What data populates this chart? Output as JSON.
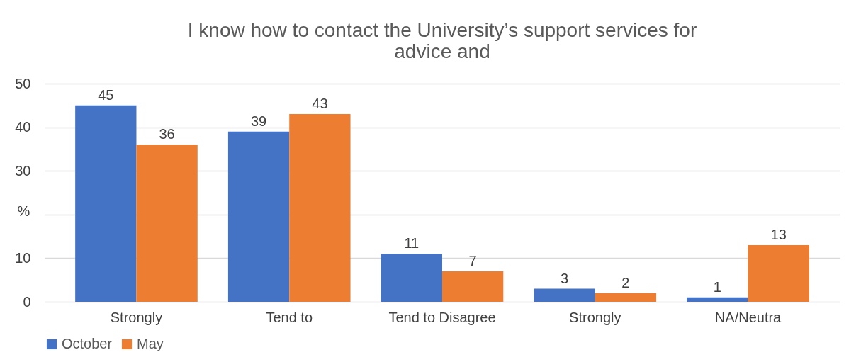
{
  "chart_data": {
    "type": "bar",
    "title": "I know how to contact the University’s support services for\nadvice and",
    "categories": [
      "Strongly",
      "Tend to",
      "Tend to Disagree",
      "Strongly",
      "NA/Neutra"
    ],
    "series": [
      {
        "name": "October",
        "color": "#4472c4",
        "values": [
          45,
          39,
          11,
          3,
          1
        ]
      },
      {
        "name": "May",
        "color": "#ed7d31",
        "values": [
          36,
          43,
          7,
          2,
          13
        ]
      }
    ],
    "ylabel": "%",
    "ylim": [
      0,
      50
    ],
    "yticks": [
      0,
      10,
      {
        "value": 20,
        "label": null
      },
      30,
      40,
      50
    ],
    "grid": "y",
    "legend": "bottom",
    "data_labels": true
  }
}
